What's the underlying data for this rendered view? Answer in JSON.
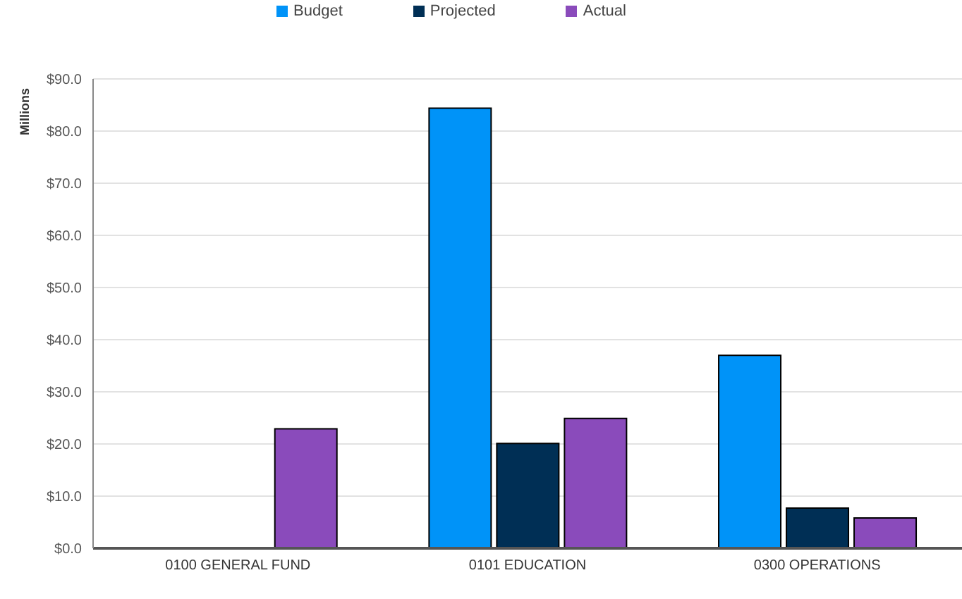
{
  "chart_data": {
    "type": "bar",
    "ylabel": "Millions",
    "categories": [
      "0100 GENERAL FUND",
      "0101 EDUCATION",
      "0300 OPERATIONS"
    ],
    "series": [
      {
        "name": "Budget",
        "color": "#0093f8",
        "values": [
          0,
          84.4,
          37.0
        ]
      },
      {
        "name": "Projected",
        "color": "#002f55",
        "values": [
          0,
          20.1,
          7.7
        ]
      },
      {
        "name": "Actual",
        "color": "#8a4bbb",
        "values": [
          22.9,
          24.9,
          5.8
        ]
      }
    ],
    "ylim": [
      0,
      90
    ],
    "yticks": [
      {
        "value": 0,
        "label": "$0.0"
      },
      {
        "value": 10,
        "label": "$10.0"
      },
      {
        "value": 20,
        "label": "$20.0"
      },
      {
        "value": 30,
        "label": "$30.0"
      },
      {
        "value": 40,
        "label": "$40.0"
      },
      {
        "value": 50,
        "label": "$50.0"
      },
      {
        "value": 60,
        "label": "$60.0"
      },
      {
        "value": 70,
        "label": "$70.0"
      },
      {
        "value": 80,
        "label": "$80.0"
      },
      {
        "value": 90,
        "label": "$90.0"
      }
    ],
    "grid": "y",
    "legend": "top"
  }
}
